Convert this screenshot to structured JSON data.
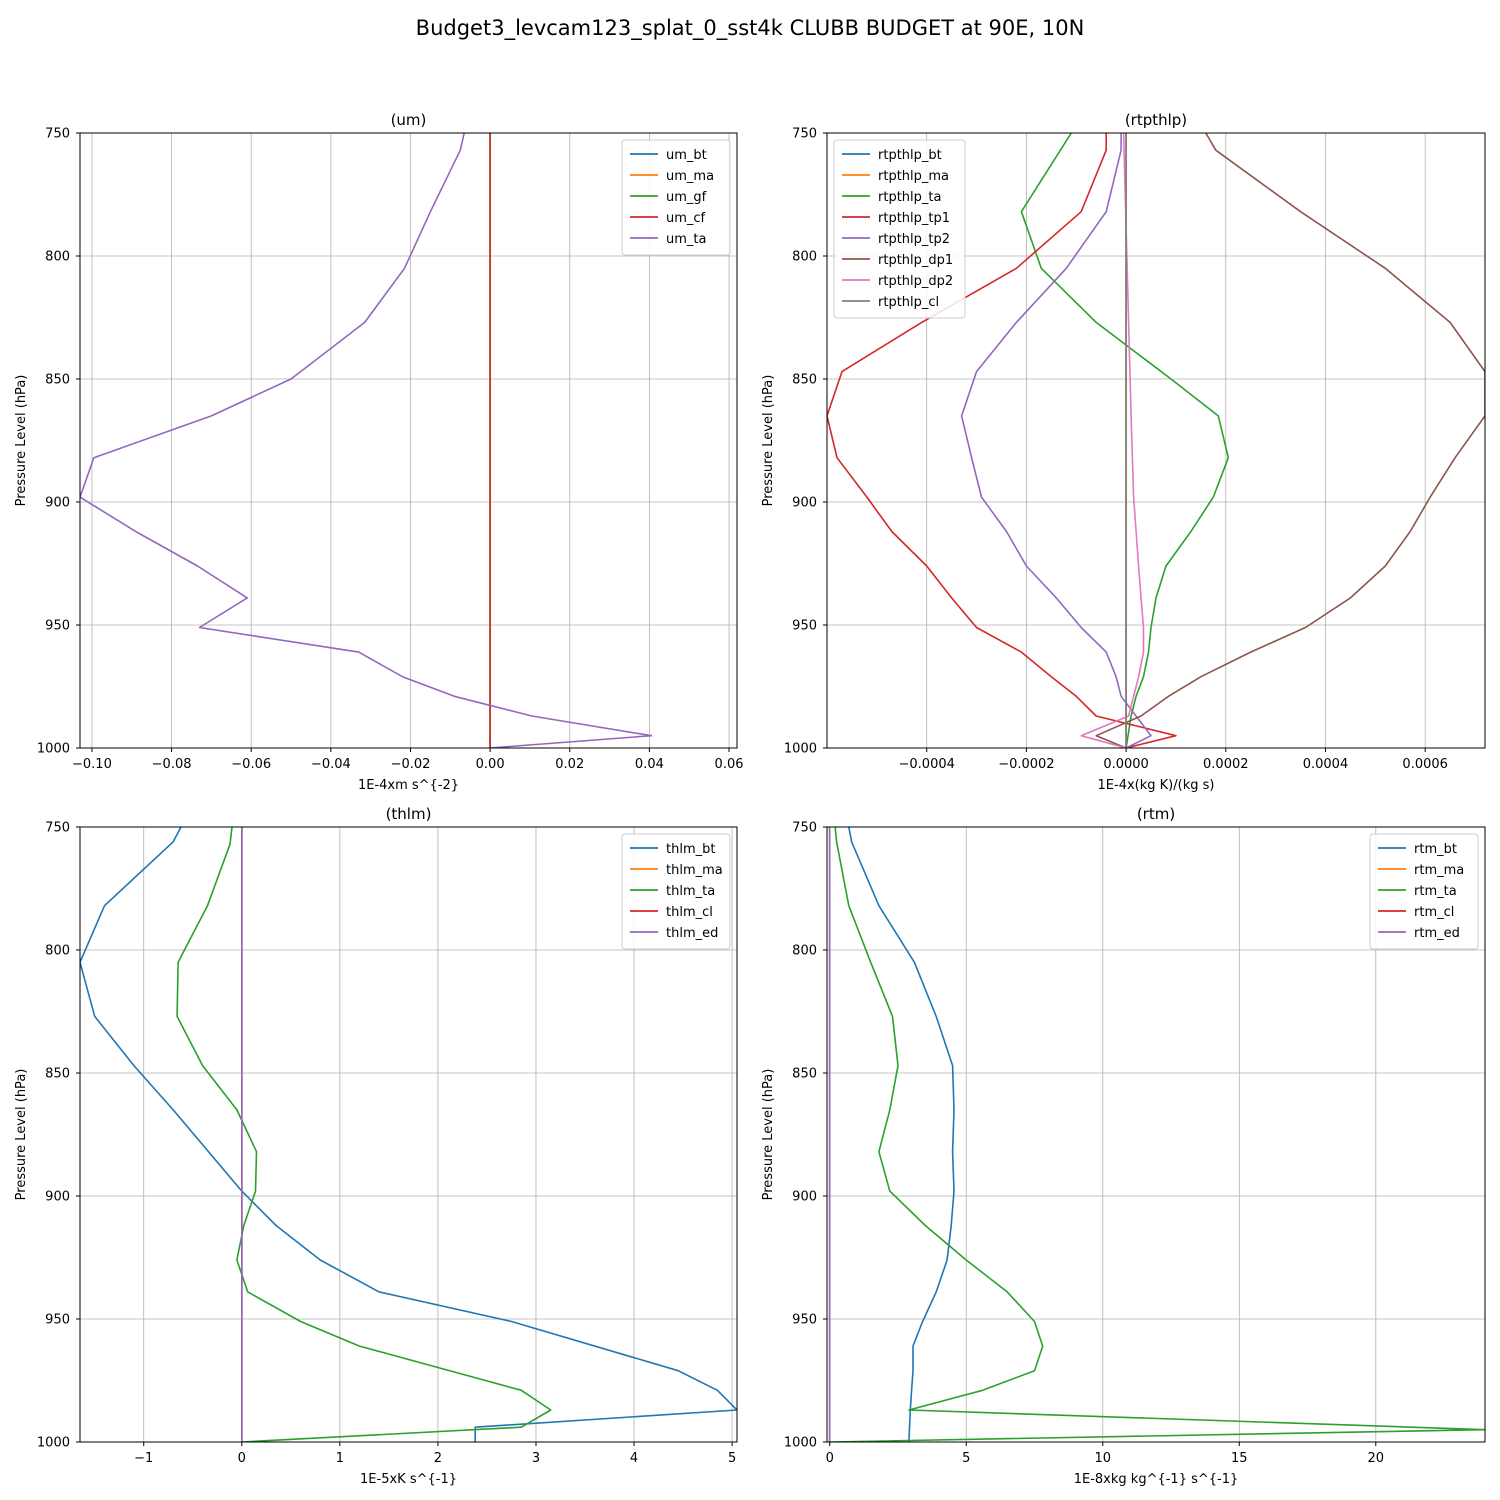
{
  "figure_title": "Budget3_levcam123_splat_0_sst4k CLUBB BUDGET at 90E, 10N",
  "chart_data": [
    {
      "type": "line",
      "title": "(um)",
      "xlabel": "1E-4xm s^{-2}",
      "ylabel": "Pressure Level (hPa)",
      "xlim": [
        -0.103,
        0.062
      ],
      "ylim": [
        1000,
        750
      ],
      "xticks": [
        -0.1,
        -0.08,
        -0.06,
        -0.04,
        -0.02,
        0.0,
        0.02,
        0.04,
        0.06
      ],
      "xtick_labels": [
        "−0.10",
        "−0.08",
        "−0.06",
        "−0.04",
        "−0.02",
        "0.00",
        "0.02",
        "0.04",
        "0.06"
      ],
      "yticks": [
        750,
        800,
        850,
        900,
        950,
        1000
      ],
      "ytick_labels": [
        "750",
        "800",
        "850",
        "900",
        "950",
        "1000"
      ],
      "legend_position": "upper-right",
      "series": [
        {
          "name": "um_bt",
          "color": "#1f77b4",
          "x": [
            0,
            0
          ],
          "y": [
            995,
            1000
          ]
        },
        {
          "name": "um_ma",
          "color": "#ff7f0e",
          "x": [
            0,
            0
          ],
          "y": [
            750,
            1000
          ]
        },
        {
          "name": "um_gf",
          "color": "#2ca02c",
          "x": [
            0,
            0
          ],
          "y": [
            750,
            1000
          ]
        },
        {
          "name": "um_cf",
          "color": "#d62728",
          "x": [
            0,
            0
          ],
          "y": [
            750,
            1000
          ]
        },
        {
          "name": "um_ta",
          "color": "#9467bd",
          "x": [
            -0.0065,
            -0.0075,
            -0.015,
            -0.0215,
            -0.0315,
            -0.05,
            -0.07,
            -0.0995,
            -0.103,
            -0.089,
            -0.0735,
            -0.061,
            -0.073,
            -0.033,
            -0.022,
            -0.009,
            0.0105,
            0.0405,
            0.0
          ],
          "y": [
            750,
            757,
            782,
            805,
            827,
            850,
            865,
            882,
            898,
            912,
            926,
            939,
            951,
            961,
            971,
            979,
            987,
            995,
            1000
          ]
        }
      ]
    },
    {
      "type": "line",
      "title": "(rtpthlp)",
      "xlabel": "1E-4x(kg K)/(kg s)",
      "ylabel": "Pressure Level (hPa)",
      "xlim": [
        -0.0006,
        0.00072
      ],
      "ylim": [
        1000,
        750
      ],
      "xticks": [
        -0.0004,
        -0.0002,
        0.0,
        0.0002,
        0.0004,
        0.0006
      ],
      "xtick_labels": [
        "−0.0004",
        "−0.0002",
        "0.0000",
        "0.0002",
        "0.0004",
        "0.0006"
      ],
      "yticks": [
        750,
        800,
        850,
        900,
        950,
        1000
      ],
      "ytick_labels": [
        "750",
        "800",
        "850",
        "900",
        "950",
        "1000"
      ],
      "legend_position": "upper-left",
      "series": [
        {
          "name": "rtpthlp_bt",
          "color": "#1f77b4",
          "x": [
            0,
            0
          ],
          "y": [
            750,
            1000
          ]
        },
        {
          "name": "rtpthlp_ma",
          "color": "#ff7f0e",
          "x": [
            0,
            0
          ],
          "y": [
            750,
            1000
          ]
        },
        {
          "name": "rtpthlp_ta",
          "color": "#2ca02c",
          "x": [
            -0.00011,
            -0.00021,
            -0.00017,
            -6e-05,
            9e-05,
            0.000185,
            0.000205,
            0.000175,
            0.00013,
            8e-05,
            6e-05,
            5e-05,
            4.5e-05,
            3.5e-05,
            2e-05,
            1e-05,
            0.0
          ],
          "y": [
            750,
            782,
            805,
            827,
            850,
            865,
            882,
            898,
            912,
            926,
            939,
            951,
            961,
            971,
            979,
            987,
            1000
          ]
        },
        {
          "name": "rtpthlp_tp1",
          "color": "#d62728",
          "x": [
            -4e-05,
            -4e-05,
            -9e-05,
            -0.00022,
            -0.00041,
            -0.00057,
            -0.0006,
            -0.00058,
            -0.00052,
            -0.00047,
            -0.0004,
            -0.00035,
            -0.0003,
            -0.00021,
            -0.00015,
            -0.0001,
            -6e-05,
            0.0001,
            0.0
          ],
          "y": [
            750,
            757,
            782,
            805,
            827,
            847,
            865,
            882,
            898,
            912,
            926,
            939,
            951,
            961,
            971,
            979,
            987,
            995,
            1000
          ]
        },
        {
          "name": "rtpthlp_tp2",
          "color": "#9467bd",
          "x": [
            -1e-05,
            -1e-05,
            -4e-05,
            -0.00012,
            -0.00022,
            -0.0003,
            -0.00033,
            -0.00031,
            -0.00029,
            -0.00024,
            -0.0002,
            -0.00014,
            -9e-05,
            -4e-05,
            -2e-05,
            -1e-05,
            5e-05,
            0.0
          ],
          "y": [
            750,
            757,
            782,
            805,
            827,
            847,
            865,
            882,
            898,
            912,
            926,
            939,
            951,
            961,
            971,
            979,
            995,
            1000
          ]
        },
        {
          "name": "rtpthlp_dp1",
          "color": "#8c564b",
          "x": [
            0.00016,
            0.00018,
            0.00035,
            0.00052,
            0.00065,
            0.00072,
            0.00072,
            0.00066,
            0.00061,
            0.00057,
            0.00052,
            0.00045,
            0.00036,
            0.00025,
            0.00015,
            8.5e-05,
            3e-05,
            -6e-05,
            0.0
          ],
          "y": [
            750,
            757,
            782,
            805,
            827,
            847,
            865,
            882,
            898,
            912,
            926,
            939,
            951,
            961,
            971,
            979,
            987,
            995,
            1000
          ]
        },
        {
          "name": "rtpthlp_dp2",
          "color": "#e377c2",
          "x": [
            -5e-06,
            5e-06,
            1e-05,
            1.5e-05,
            2e-05,
            2.5e-05,
            3e-05,
            3.5e-05,
            3.5e-05,
            2.5e-05,
            1.5e-05,
            5e-06,
            -9e-05,
            0.0
          ],
          "y": [
            750,
            827,
            865,
            898,
            912,
            926,
            939,
            951,
            961,
            971,
            979,
            987,
            995,
            1000
          ]
        },
        {
          "name": "rtpthlp_cl",
          "color": "#7f7f7f",
          "x": [
            0,
            0
          ],
          "y": [
            750,
            1000
          ]
        }
      ]
    },
    {
      "type": "line",
      "title": "(thlm)",
      "xlabel": "1E-5xK s^{-1}",
      "ylabel": "Pressure Level (hPa)",
      "xlim": [
        -1.65,
        5.05
      ],
      "ylim": [
        1000,
        750
      ],
      "xticks": [
        -1,
        0,
        1,
        2,
        3,
        4,
        5
      ],
      "xtick_labels": [
        "−1",
        "0",
        "1",
        "2",
        "3",
        "4",
        "5"
      ],
      "yticks": [
        750,
        800,
        850,
        900,
        950,
        1000
      ],
      "ytick_labels": [
        "750",
        "800",
        "850",
        "900",
        "950",
        "1000"
      ],
      "legend_position": "upper-right",
      "series": [
        {
          "name": "thlm_bt",
          "color": "#1f77b4",
          "x": [
            -0.62,
            -0.7,
            -1.4,
            -1.65,
            -1.5,
            -1.1,
            -0.7,
            0.0,
            0.35,
            0.8,
            1.4,
            2.75,
            4.45,
            4.85,
            5.05,
            2.38,
            2.38
          ],
          "y": [
            750,
            756,
            782,
            805,
            827,
            847,
            865,
            898,
            912,
            926,
            939,
            951,
            971,
            979,
            987,
            994,
            1000
          ]
        },
        {
          "name": "thlm_ma",
          "color": "#ff7f0e",
          "x": [
            0,
            0
          ],
          "y": [
            750,
            1000
          ]
        },
        {
          "name": "thlm_ta",
          "color": "#2ca02c",
          "x": [
            -0.1,
            -0.12,
            -0.35,
            -0.65,
            -0.66,
            -0.4,
            -0.05,
            0.15,
            0.14,
            0.02,
            -0.05,
            0.06,
            0.6,
            1.2,
            2.85,
            3.15,
            2.85,
            0.0
          ],
          "y": [
            750,
            757,
            782,
            805,
            827,
            847,
            865,
            882,
            898,
            912,
            926,
            939,
            951,
            961,
            979,
            987,
            994,
            1000
          ]
        },
        {
          "name": "thlm_cl",
          "color": "#d62728",
          "x": [
            0,
            0
          ],
          "y": [
            750,
            1000
          ]
        },
        {
          "name": "thlm_ed",
          "color": "#9467bd",
          "x": [
            0,
            0
          ],
          "y": [
            750,
            1000
          ]
        }
      ]
    },
    {
      "type": "line",
      "title": "(rtm)",
      "xlabel": "1E-8xkg kg^{-1} s^{-1}",
      "ylabel": "Pressure Level (hPa)",
      "xlim": [
        -0.1,
        24.0
      ],
      "ylim": [
        1000,
        750
      ],
      "xticks": [
        0,
        5,
        10,
        15,
        20
      ],
      "xtick_labels": [
        "0",
        "5",
        "10",
        "15",
        "20"
      ],
      "yticks": [
        750,
        800,
        850,
        900,
        950,
        1000
      ],
      "ytick_labels": [
        "750",
        "800",
        "850",
        "900",
        "950",
        "1000"
      ],
      "legend_position": "upper-right",
      "series": [
        {
          "name": "rtm_bt",
          "color": "#1f77b4",
          "x": [
            0.7,
            0.8,
            1.8,
            3.1,
            3.9,
            4.5,
            4.55,
            4.5,
            4.55,
            4.45,
            4.3,
            3.9,
            3.4,
            3.05,
            3.05,
            3.0,
            2.95,
            2.9
          ],
          "y": [
            750,
            756,
            782,
            805,
            827,
            847,
            865,
            882,
            898,
            912,
            926,
            939,
            951,
            961,
            971,
            979,
            987,
            1000
          ]
        },
        {
          "name": "rtm_ma",
          "color": "#ff7f0e",
          "x": [
            0,
            0
          ],
          "y": [
            750,
            1000
          ]
        },
        {
          "name": "rtm_ta",
          "color": "#2ca02c",
          "x": [
            0.2,
            0.25,
            0.7,
            1.5,
            2.3,
            2.5,
            2.2,
            1.8,
            2.2,
            3.5,
            5.0,
            6.5,
            7.5,
            7.8,
            7.5,
            5.6,
            2.9,
            24.0,
            0.0
          ],
          "y": [
            750,
            756,
            782,
            805,
            827,
            847,
            865,
            882,
            898,
            912,
            926,
            939,
            951,
            961,
            971,
            979,
            987,
            995,
            1000
          ]
        },
        {
          "name": "rtm_cl",
          "color": "#d62728",
          "x": [
            0,
            0
          ],
          "y": [
            750,
            1000
          ]
        },
        {
          "name": "rtm_ed",
          "color": "#9467bd",
          "x": [
            0,
            0
          ],
          "y": [
            750,
            1000
          ]
        }
      ]
    }
  ]
}
